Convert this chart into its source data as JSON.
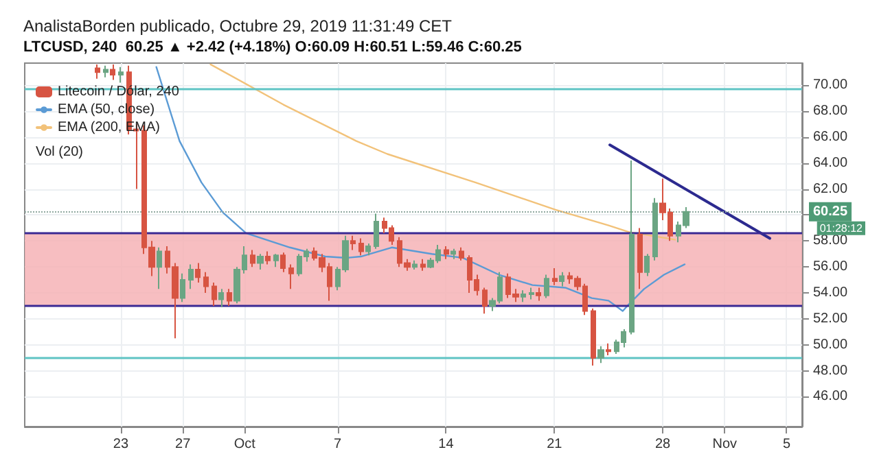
{
  "chart_data": {
    "type": "candlestick",
    "title": "AnalistaBorden publicado, Octubre 29, 2019 11:31:49 CET",
    "subtitle": "LTCUSD, 240  60.25 ▲ +2.42 (+4.18%) O:60.09 H:60.51 L:59.46 C:60.25",
    "annotations": [
      "Vol (20)",
      "01:28:12"
    ],
    "xlim": [
      "2019-09-16T19:00",
      "2019-11-06T00:00"
    ],
    "xticks": [
      {
        "value": "2019-09-23",
        "label": "23"
      },
      {
        "value": "2019-09-27",
        "label": "27"
      },
      {
        "value": "2019-10-01",
        "label": "Oct"
      },
      {
        "value": "2019-10-07",
        "label": "7"
      },
      {
        "value": "2019-10-14",
        "label": "14"
      },
      {
        "value": "2019-10-21",
        "label": "21"
      },
      {
        "value": "2019-10-28",
        "label": "28"
      },
      {
        "value": "2019-11-01",
        "label": "Nov"
      },
      {
        "value": "2019-11-05",
        "label": "5"
      }
    ],
    "ylim": [
      43.7,
      71.7
    ],
    "yticks": [
      {
        "value": 46,
        "label": "46.00"
      },
      {
        "value": 48,
        "label": "48.00"
      },
      {
        "value": 50,
        "label": "50.00"
      },
      {
        "value": 52,
        "label": "52.00"
      },
      {
        "value": 54,
        "label": "54.00"
      },
      {
        "value": 56,
        "label": "56.00"
      },
      {
        "value": 58,
        "label": "58.00"
      },
      {
        "value": 60,
        "label": null
      },
      {
        "value": 62,
        "label": "62.00"
      },
      {
        "value": 64,
        "label": "64.00"
      },
      {
        "value": 66,
        "label": "66.00"
      },
      {
        "value": 68,
        "label": "68.00"
      },
      {
        "value": 70,
        "label": "70.00"
      }
    ],
    "grid": true,
    "legend": "top left",
    "bands": [
      {
        "axis": "y",
        "from": 53.0,
        "to": 58.6,
        "color": "#f6b3b6"
      }
    ],
    "ref_lines": [
      {
        "axis": "y",
        "value": 69.7,
        "color": "#5fc4c4"
      },
      {
        "axis": "y",
        "value": 49.0,
        "color": "#5fc4c4"
      },
      {
        "axis": "y",
        "value": 58.6,
        "color": "#3b2a94"
      },
      {
        "axis": "y",
        "value": 53.0,
        "color": "#3b2a94"
      },
      {
        "axis": "y",
        "value": 60.25,
        "label": "60.25",
        "color": "#8fa8a0",
        "line_style": "dotted"
      }
    ],
    "series": [
      {
        "name": "Litecoin / Dólar, 240",
        "x": [
          "2019-09-21T12:00",
          "2019-09-22T00:00",
          "2019-09-22T12:00",
          "2019-09-23T00:00",
          "2019-09-23T12:00",
          "2019-09-24T00:00",
          "2019-09-24T12:00",
          "2019-09-25T00:00",
          "2019-09-25T12:00",
          "2019-09-26T00:00",
          "2019-09-26T12:00",
          "2019-09-27T00:00",
          "2019-09-27T12:00",
          "2019-09-28T00:00",
          "2019-09-28T12:00",
          "2019-09-29T00:00",
          "2019-09-29T12:00",
          "2019-09-30T00:00",
          "2019-09-30T12:00",
          "2019-10-01T00:00",
          "2019-10-01T12:00",
          "2019-10-02T00:00",
          "2019-10-02T12:00",
          "2019-10-03T00:00",
          "2019-10-03T12:00",
          "2019-10-04T00:00",
          "2019-10-04T12:00",
          "2019-10-05T00:00",
          "2019-10-05T12:00",
          "2019-10-06T00:00",
          "2019-10-06T12:00",
          "2019-10-07T00:00",
          "2019-10-07T12:00",
          "2019-10-08T00:00",
          "2019-10-08T12:00",
          "2019-10-09T00:00",
          "2019-10-09T12:00",
          "2019-10-10T00:00",
          "2019-10-10T12:00",
          "2019-10-11T00:00",
          "2019-10-11T12:00",
          "2019-10-12T00:00",
          "2019-10-12T12:00",
          "2019-10-13T00:00",
          "2019-10-13T12:00",
          "2019-10-14T00:00",
          "2019-10-14T12:00",
          "2019-10-15T00:00",
          "2019-10-15T12:00",
          "2019-10-16T00:00",
          "2019-10-16T12:00",
          "2019-10-17T00:00",
          "2019-10-17T12:00",
          "2019-10-18T00:00",
          "2019-10-18T12:00",
          "2019-10-19T00:00",
          "2019-10-19T12:00",
          "2019-10-20T00:00",
          "2019-10-20T12:00",
          "2019-10-21T00:00",
          "2019-10-21T12:00",
          "2019-10-22T00:00",
          "2019-10-22T12:00",
          "2019-10-23T00:00",
          "2019-10-23T12:00",
          "2019-10-24T00:00",
          "2019-10-24T12:00",
          "2019-10-25T00:00",
          "2019-10-25T12:00",
          "2019-10-26T00:00",
          "2019-10-26T12:00",
          "2019-10-27T00:00",
          "2019-10-27T12:00",
          "2019-10-28T00:00",
          "2019-10-28T12:00",
          "2019-10-29T00:00",
          "2019-10-29T12:00"
        ],
        "ohlc": [
          [
            71.3,
            71.6,
            70.5,
            71.0
          ],
          [
            71.0,
            71.5,
            70.6,
            71.2
          ],
          [
            71.2,
            71.6,
            70.4,
            70.8
          ],
          [
            70.8,
            71.4,
            70.2,
            71.0
          ],
          [
            71.0,
            71.5,
            66.2,
            66.6
          ],
          [
            66.6,
            67.0,
            62.0,
            66.5
          ],
          [
            66.5,
            66.9,
            57.0,
            57.5
          ],
          [
            57.5,
            58.0,
            55.3,
            56.0
          ],
          [
            56.0,
            57.5,
            54.3,
            57.2
          ],
          [
            57.2,
            57.6,
            55.5,
            56.0
          ],
          [
            56.0,
            56.3,
            50.5,
            53.6
          ],
          [
            53.6,
            55.5,
            53.3,
            55.0
          ],
          [
            55.0,
            56.2,
            54.3,
            55.8
          ],
          [
            55.8,
            56.3,
            54.8,
            55.2
          ],
          [
            55.2,
            55.6,
            54.0,
            54.5
          ],
          [
            54.5,
            54.8,
            53.0,
            53.5
          ],
          [
            53.5,
            54.3,
            52.9,
            54.0
          ],
          [
            54.0,
            54.3,
            53.0,
            53.4
          ],
          [
            53.4,
            56.0,
            53.2,
            55.8
          ],
          [
            55.8,
            57.6,
            55.5,
            56.9
          ],
          [
            56.9,
            57.3,
            56.0,
            56.3
          ],
          [
            56.3,
            57.0,
            55.8,
            56.8
          ],
          [
            56.8,
            57.2,
            56.2,
            56.5
          ],
          [
            56.5,
            57.0,
            56.0,
            56.9
          ],
          [
            56.9,
            57.1,
            55.6,
            55.9
          ],
          [
            55.9,
            56.2,
            54.3,
            55.5
          ],
          [
            55.5,
            57.0,
            55.3,
            56.8
          ],
          [
            56.8,
            57.4,
            56.4,
            57.2
          ],
          [
            57.2,
            57.5,
            56.5,
            56.7
          ],
          [
            56.7,
            57.0,
            55.6,
            56.0
          ],
          [
            56.0,
            56.3,
            53.4,
            54.5
          ],
          [
            54.5,
            56.0,
            54.2,
            55.8
          ],
          [
            55.8,
            58.4,
            55.6,
            58.0
          ],
          [
            58.0,
            58.4,
            57.3,
            57.8
          ],
          [
            57.8,
            58.2,
            56.9,
            57.2
          ],
          [
            57.2,
            57.8,
            56.9,
            57.6
          ],
          [
            57.6,
            60.1,
            57.4,
            59.5
          ],
          [
            59.5,
            59.8,
            58.6,
            59.0
          ],
          [
            59.0,
            59.2,
            57.7,
            58.0
          ],
          [
            58.0,
            58.3,
            56.0,
            56.3
          ],
          [
            56.3,
            56.6,
            55.7,
            56.0
          ],
          [
            56.0,
            56.5,
            55.8,
            56.2
          ],
          [
            56.2,
            56.6,
            55.7,
            56.0
          ],
          [
            56.0,
            56.7,
            55.9,
            56.5
          ],
          [
            56.5,
            57.7,
            56.3,
            57.3
          ],
          [
            57.3,
            57.6,
            56.6,
            57.0
          ],
          [
            57.0,
            57.4,
            56.6,
            57.2
          ],
          [
            57.2,
            57.5,
            56.5,
            56.7
          ],
          [
            56.7,
            56.9,
            54.0,
            55.0
          ],
          [
            55.0,
            55.4,
            53.8,
            54.2
          ],
          [
            54.2,
            54.4,
            52.4,
            53.0
          ],
          [
            53.0,
            53.6,
            52.6,
            53.4
          ],
          [
            53.4,
            55.6,
            53.2,
            55.2
          ],
          [
            55.2,
            55.5,
            53.6,
            53.9
          ],
          [
            53.9,
            54.3,
            53.3,
            53.7
          ],
          [
            53.7,
            54.2,
            53.3,
            53.9
          ],
          [
            53.9,
            54.4,
            53.5,
            54.0
          ],
          [
            54.0,
            54.4,
            53.4,
            53.8
          ],
          [
            53.8,
            55.4,
            53.6,
            55.1
          ],
          [
            55.1,
            55.9,
            54.6,
            54.9
          ],
          [
            54.9,
            55.6,
            54.5,
            55.3
          ],
          [
            55.3,
            55.6,
            54.7,
            55.1
          ],
          [
            55.1,
            55.3,
            54.2,
            54.5
          ],
          [
            54.5,
            54.7,
            52.3,
            52.6
          ],
          [
            52.6,
            52.8,
            48.4,
            49.0
          ],
          [
            49.0,
            49.9,
            48.6,
            49.6
          ],
          [
            49.6,
            50.1,
            49.2,
            49.5
          ],
          [
            49.5,
            50.4,
            49.3,
            50.2
          ],
          [
            50.2,
            51.2,
            49.8,
            51.0
          ],
          [
            51.0,
            64.2,
            50.8,
            58.5
          ],
          [
            58.5,
            59.0,
            54.3,
            55.6
          ],
          [
            55.6,
            57.0,
            55.3,
            56.8
          ],
          [
            56.8,
            61.3,
            56.5,
            60.9
          ],
          [
            60.9,
            62.8,
            59.6,
            60.2
          ],
          [
            60.2,
            60.5,
            58.0,
            58.4
          ],
          [
            58.4,
            59.5,
            57.9,
            59.2
          ],
          [
            59.2,
            60.6,
            59.0,
            60.25
          ]
        ],
        "colors": [
          "#d75442",
          "#6ba583",
          "#d75442",
          "#6ba583",
          "#d75442",
          "#d75442",
          "#d75442",
          "#d75442",
          "#6ba583",
          "#d75442",
          "#d75442",
          "#6ba583",
          "#6ba583",
          "#d75442",
          "#d75442",
          "#d75442",
          "#6ba583",
          "#d75442",
          "#6ba583",
          "#6ba583",
          "#d75442",
          "#6ba583",
          "#d75442",
          "#6ba583",
          "#d75442",
          "#d75442",
          "#6ba583",
          "#6ba583",
          "#d75442",
          "#d75442",
          "#d75442",
          "#6ba583",
          "#6ba583",
          "#d75442",
          "#d75442",
          "#6ba583",
          "#6ba583",
          "#d75442",
          "#d75442",
          "#d75442",
          "#d75442",
          "#6ba583",
          "#d75442",
          "#6ba583",
          "#6ba583",
          "#d75442",
          "#6ba583",
          "#d75442",
          "#d75442",
          "#d75442",
          "#d75442",
          "#6ba583",
          "#6ba583",
          "#d75442",
          "#d75442",
          "#6ba583",
          "#6ba583",
          "#d75442",
          "#6ba583",
          "#d75442",
          "#6ba583",
          "#d75442",
          "#d75442",
          "#d75442",
          "#d75442",
          "#6ba583",
          "#d75442",
          "#6ba583",
          "#6ba583",
          "#6ba583",
          "#d75442",
          "#6ba583",
          "#6ba583",
          "#d75442",
          "#d75442",
          "#6ba583",
          "#6ba583"
        ]
      },
      {
        "name": "EMA (50, close)",
        "type": "line",
        "color": "#5b9bd5",
        "x": [
          "2019-09-25T07:00",
          "2019-09-26T19:00",
          "2019-09-28T05:00",
          "2019-09-29T14:00",
          "2019-10-01T02:00",
          "2019-10-03T22:00",
          "2019-10-06T05:00",
          "2019-10-07T14:00",
          "2019-10-08T12:00",
          "2019-10-10T12:00",
          "2019-10-13T02:00",
          "2019-10-15T02:00",
          "2019-10-17T10:00",
          "2019-10-19T14:00",
          "2019-10-21T17:00",
          "2019-10-23T10:00",
          "2019-10-24T12:00",
          "2019-10-25T10:00",
          "2019-10-25T19:00",
          "2019-10-26T19:00",
          "2019-10-28T02:00",
          "2019-10-29T10:00"
        ],
        "values": [
          71.4,
          65.7,
          62.5,
          60.2,
          58.6,
          57.5,
          56.8,
          56.7,
          56.8,
          57.5,
          57.0,
          56.7,
          55.4,
          54.6,
          54.4,
          53.6,
          53.4,
          52.6,
          53.1,
          54.3,
          55.4,
          56.2
        ]
      },
      {
        "name": "EMA (200, EMA)",
        "type": "line",
        "color": "#f2c27a",
        "x": [
          "2019-09-28T19:00",
          "2019-10-03T12:00",
          "2019-10-08T05:00",
          "2019-10-10T05:00",
          "2019-10-15T22:00",
          "2019-10-21T02:00",
          "2019-10-24T12:00",
          "2019-10-25T19:00",
          "2019-10-28T19:00"
        ],
        "values": [
          71.6,
          68.5,
          65.7,
          64.7,
          62.5,
          60.4,
          59.2,
          58.7,
          58.1
        ]
      },
      {
        "type": "line",
        "color": "#2c2a8f",
        "x": [
          "2019-10-24T14:00",
          "2019-11-03T22:00"
        ],
        "values": [
          65.4,
          58.2
        ]
      }
    ]
  }
}
